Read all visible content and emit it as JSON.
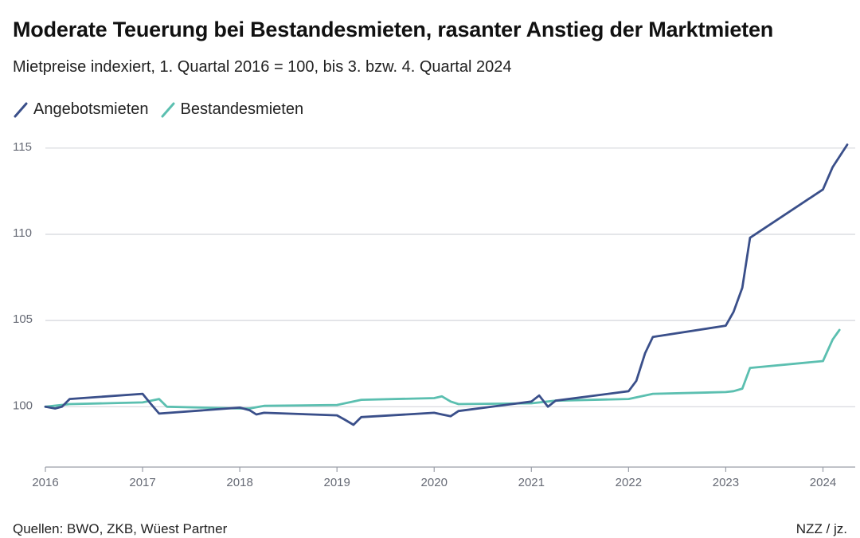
{
  "chart_data": {
    "type": "line",
    "title": "Moderate Teuerung bei Bestandesmieten, rasanter Anstieg der Marktmieten",
    "subtitle": "Mietpreise indexiert, 1. Quartal 2016 = 100, bis 3. bzw. 4. Quartal 2024",
    "xlabel": "",
    "ylabel": "",
    "xlim": [
      2016,
      2024.25
    ],
    "ylim": [
      96.5,
      115.5
    ],
    "x_ticks": [
      2016,
      2017,
      2018,
      2019,
      2020,
      2021,
      2022,
      2023,
      2024
    ],
    "x_tick_labels": [
      "2016",
      "2017",
      "2018",
      "2019",
      "2020",
      "2021",
      "2022",
      "2023",
      "2024"
    ],
    "y_ticks": [
      100,
      105,
      110,
      115
    ],
    "y_tick_labels": [
      "100",
      "105",
      "110",
      "115"
    ],
    "grid": true,
    "legend_position": "top-left",
    "series": [
      {
        "name": "Angebotsmieten",
        "color": "#3a4f8a",
        "x": [
          2016.0,
          2016.1,
          2016.17,
          2016.25,
          2017.0,
          2017.08,
          2017.17,
          2018.0,
          2018.1,
          2018.17,
          2018.25,
          2019.0,
          2019.08,
          2019.17,
          2019.25,
          2020.0,
          2020.08,
          2020.17,
          2020.25,
          2021.0,
          2021.08,
          2021.17,
          2021.25,
          2022.0,
          2022.08,
          2022.17,
          2022.25,
          2023.0,
          2023.08,
          2023.17,
          2023.25,
          2024.0,
          2024.1,
          2024.25
        ],
        "values": [
          100.0,
          99.9,
          100.0,
          100.45,
          100.75,
          100.2,
          99.6,
          99.95,
          99.8,
          99.55,
          99.65,
          99.5,
          99.25,
          98.95,
          99.4,
          99.65,
          99.55,
          99.45,
          99.75,
          100.3,
          100.65,
          100.0,
          100.35,
          100.9,
          101.5,
          103.1,
          104.05,
          104.7,
          105.5,
          106.9,
          109.8,
          112.6,
          113.9,
          115.2
        ]
      },
      {
        "name": "Bestandesmieten",
        "color": "#5bbfb0",
        "x": [
          2016.0,
          2016.25,
          2017.0,
          2017.17,
          2017.25,
          2018.0,
          2018.1,
          2018.25,
          2019.0,
          2019.25,
          2020.0,
          2020.08,
          2020.17,
          2020.25,
          2021.0,
          2021.25,
          2022.0,
          2022.25,
          2023.0,
          2023.08,
          2023.17,
          2023.25,
          2024.0,
          2024.1,
          2024.17
        ],
        "values": [
          100.0,
          100.15,
          100.25,
          100.45,
          100.0,
          99.9,
          99.9,
          100.05,
          100.1,
          100.4,
          100.5,
          100.6,
          100.3,
          100.15,
          100.2,
          100.35,
          100.45,
          100.75,
          100.85,
          100.9,
          101.05,
          102.25,
          102.65,
          103.9,
          104.45
        ]
      }
    ]
  },
  "footer": {
    "source": "Quellen: BWO, ZKB, Wüest Partner",
    "credit": "NZZ / jz."
  }
}
